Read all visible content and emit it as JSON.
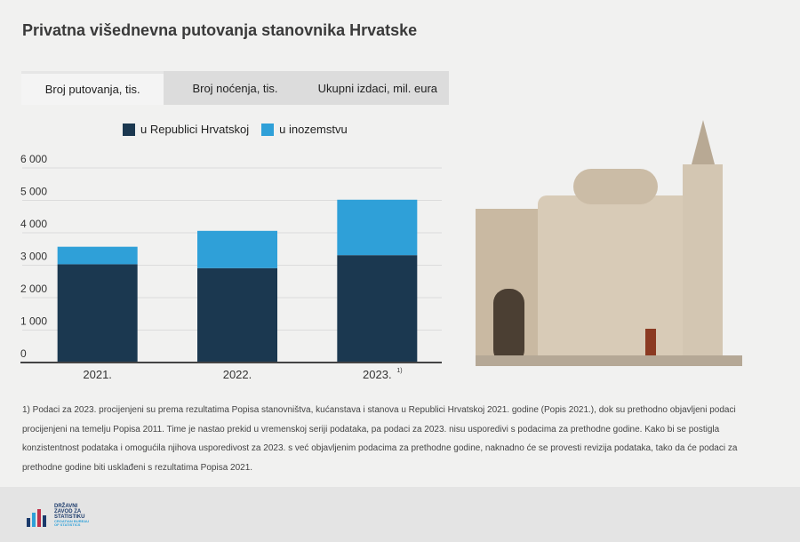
{
  "title": "Privatna višednevna putovanja stanovnika Hrvatske",
  "tabs": [
    {
      "label": "Broj putovanja, tis.",
      "active": true
    },
    {
      "label": "Broj noćenja, tis.",
      "active": false
    },
    {
      "label": "Ukupni izdaci, mil. eura",
      "active": false
    }
  ],
  "chart_data": {
    "type": "bar",
    "stacked": true,
    "categories": [
      "2021.",
      "2022.",
      "2023."
    ],
    "category_superscripts": [
      "",
      "",
      "1)"
    ],
    "series": [
      {
        "name": "u Republici Hrvatskoj",
        "color": "#1b3850",
        "values": [
          3030,
          2910,
          3310
        ]
      },
      {
        "name": "u inozemstvu",
        "color": "#2fa0d8",
        "values": [
          540,
          1150,
          1710
        ]
      }
    ],
    "yticks": [
      "0",
      "1 000",
      "2 000",
      "3 000",
      "4 000",
      "5 000",
      "6 000"
    ],
    "ylim": [
      0,
      6000
    ],
    "grid": true,
    "legend": "top"
  },
  "footnote": "1) Podaci za 2023. procijenjeni su prema rezultatima Popisa stanovništva, kućanstava i stanova u Republici Hrvatskoj 2021. godine (Popis 2021.), dok su prethodno objavljeni podaci procijenjeni na temelju Popisa 2011. Time je nastao prekid u vremenskoj seriji podataka, pa podaci za 2023. nisu usporedivi s podacima za prethodne godine. Kako bi se postigla konzistentnost podataka i omogućila njihova usporedivost za 2023. s već objavljenim podacima za prethodne godine, naknadno će se provesti revizija podataka, tako da će podaci za prethodne godine biti usklađeni s rezultatima Popisa 2021.",
  "logo": {
    "lines": [
      "DRŽAVNI",
      "ZAVOD ZA",
      "STATISTIKU",
      "CROATIAN BUREAU",
      "OF STATISTICS"
    ]
  }
}
